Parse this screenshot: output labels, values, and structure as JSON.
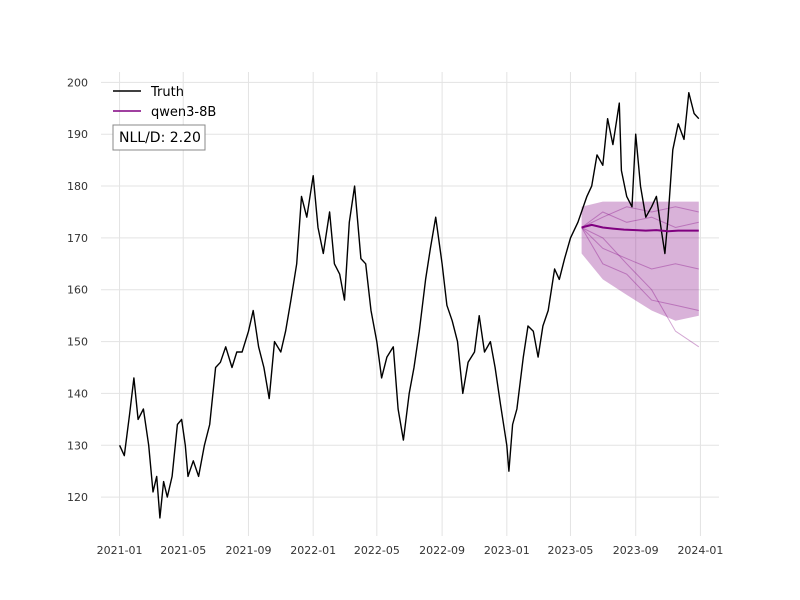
{
  "chart_data": {
    "type": "line",
    "title": "",
    "xlabel": "",
    "ylabel": "",
    "x_ticks": [
      "2021-01",
      "2021-05",
      "2021-09",
      "2022-01",
      "2022-05",
      "2022-09",
      "2023-01",
      "2023-05",
      "2023-09",
      "2024-01"
    ],
    "y_ticks": [
      120,
      130,
      140,
      150,
      160,
      170,
      180,
      190,
      200
    ],
    "xlim": [
      "2020-11-27",
      "2024-02-05"
    ],
    "ylim": [
      112.5,
      202
    ],
    "grid": true,
    "legend_position": "top-left",
    "annotation": "NLL/D: 2.20",
    "series": [
      {
        "name": "Truth",
        "color": "#000000",
        "points": [
          [
            "2021-01-01",
            130
          ],
          [
            "2021-01-10",
            128
          ],
          [
            "2021-01-20",
            136
          ],
          [
            "2021-01-28",
            143
          ],
          [
            "2021-02-05",
            135
          ],
          [
            "2021-02-15",
            137
          ],
          [
            "2021-02-25",
            130
          ],
          [
            "2021-03-05",
            121
          ],
          [
            "2021-03-12",
            124
          ],
          [
            "2021-03-18",
            116
          ],
          [
            "2021-03-25",
            123
          ],
          [
            "2021-04-01",
            120
          ],
          [
            "2021-04-10",
            124
          ],
          [
            "2021-04-20",
            134
          ],
          [
            "2021-04-28",
            135
          ],
          [
            "2021-05-05",
            130
          ],
          [
            "2021-05-10",
            124
          ],
          [
            "2021-05-20",
            127
          ],
          [
            "2021-05-30",
            124
          ],
          [
            "2021-06-10",
            130
          ],
          [
            "2021-06-20",
            134
          ],
          [
            "2021-07-01",
            145
          ],
          [
            "2021-07-10",
            146
          ],
          [
            "2021-07-20",
            149
          ],
          [
            "2021-08-01",
            145
          ],
          [
            "2021-08-10",
            148
          ],
          [
            "2021-08-20",
            148
          ],
          [
            "2021-09-01",
            152
          ],
          [
            "2021-09-10",
            156
          ],
          [
            "2021-09-20",
            149
          ],
          [
            "2021-09-30",
            145
          ],
          [
            "2021-10-10",
            139
          ],
          [
            "2021-10-20",
            150
          ],
          [
            "2021-11-01",
            148
          ],
          [
            "2021-11-10",
            152
          ],
          [
            "2021-11-20",
            158
          ],
          [
            "2021-12-01",
            165
          ],
          [
            "2021-12-10",
            178
          ],
          [
            "2021-12-20",
            174
          ],
          [
            "2022-01-01",
            182
          ],
          [
            "2022-01-10",
            172
          ],
          [
            "2022-01-20",
            167
          ],
          [
            "2022-02-01",
            175
          ],
          [
            "2022-02-10",
            165
          ],
          [
            "2022-02-20",
            163
          ],
          [
            "2022-03-01",
            158
          ],
          [
            "2022-03-10",
            173
          ],
          [
            "2022-03-20",
            180
          ],
          [
            "2022-04-01",
            166
          ],
          [
            "2022-04-10",
            165
          ],
          [
            "2022-04-20",
            156
          ],
          [
            "2022-05-01",
            150
          ],
          [
            "2022-05-10",
            143
          ],
          [
            "2022-05-20",
            147
          ],
          [
            "2022-06-01",
            149
          ],
          [
            "2022-06-10",
            137
          ],
          [
            "2022-06-20",
            131
          ],
          [
            "2022-07-01",
            140
          ],
          [
            "2022-07-10",
            145
          ],
          [
            "2022-07-20",
            152
          ],
          [
            "2022-08-01",
            162
          ],
          [
            "2022-08-10",
            168
          ],
          [
            "2022-08-20",
            174
          ],
          [
            "2022-09-01",
            165
          ],
          [
            "2022-09-10",
            157
          ],
          [
            "2022-09-20",
            154
          ],
          [
            "2022-09-30",
            150
          ],
          [
            "2022-10-10",
            140
          ],
          [
            "2022-10-20",
            146
          ],
          [
            "2022-11-01",
            148
          ],
          [
            "2022-11-10",
            155
          ],
          [
            "2022-11-20",
            148
          ],
          [
            "2022-12-01",
            150
          ],
          [
            "2022-12-10",
            145
          ],
          [
            "2022-12-20",
            138
          ],
          [
            "2023-01-01",
            130
          ],
          [
            "2023-01-05",
            125
          ],
          [
            "2023-01-12",
            134
          ],
          [
            "2023-01-20",
            137
          ],
          [
            "2023-02-01",
            147
          ],
          [
            "2023-02-10",
            153
          ],
          [
            "2023-02-20",
            152
          ],
          [
            "2023-03-01",
            147
          ],
          [
            "2023-03-10",
            153
          ],
          [
            "2023-03-20",
            156
          ],
          [
            "2023-04-01",
            164
          ],
          [
            "2023-04-10",
            162
          ],
          [
            "2023-04-20",
            166
          ],
          [
            "2023-05-01",
            170
          ],
          [
            "2023-05-15",
            173
          ],
          [
            "2023-06-01",
            178
          ],
          [
            "2023-06-10",
            180
          ],
          [
            "2023-06-20",
            186
          ],
          [
            "2023-07-01",
            184
          ],
          [
            "2023-07-10",
            193
          ],
          [
            "2023-07-20",
            188
          ],
          [
            "2023-08-01",
            196
          ],
          [
            "2023-08-05",
            183
          ],
          [
            "2023-08-15",
            178
          ],
          [
            "2023-08-25",
            176
          ],
          [
            "2023-09-01",
            190
          ],
          [
            "2023-09-10",
            180
          ],
          [
            "2023-09-20",
            174
          ],
          [
            "2023-10-01",
            176
          ],
          [
            "2023-10-10",
            178
          ],
          [
            "2023-10-20",
            171
          ],
          [
            "2023-10-26",
            167
          ],
          [
            "2023-11-01",
            174
          ],
          [
            "2023-11-10",
            187
          ],
          [
            "2023-11-20",
            192
          ],
          [
            "2023-12-01",
            189
          ],
          [
            "2023-12-10",
            198
          ],
          [
            "2023-12-20",
            194
          ],
          [
            "2023-12-29",
            193
          ]
        ]
      },
      {
        "name": "qwen3-8B",
        "color": "#800080",
        "points": [
          [
            "2023-05-22",
            172
          ],
          [
            "2023-06-10",
            172.5
          ],
          [
            "2023-07-01",
            172
          ],
          [
            "2023-07-20",
            171.8
          ],
          [
            "2023-08-10",
            171.6
          ],
          [
            "2023-09-01",
            171.5
          ],
          [
            "2023-09-20",
            171.4
          ],
          [
            "2023-10-10",
            171.5
          ],
          [
            "2023-11-01",
            171.3
          ],
          [
            "2023-11-20",
            171.4
          ],
          [
            "2023-12-29",
            171.4
          ]
        ]
      }
    ],
    "forecast_band": {
      "color": "#800080",
      "x": [
        "2023-05-22",
        "2023-07-01",
        "2023-08-15",
        "2023-10-01",
        "2023-11-15",
        "2023-12-29"
      ],
      "upper": [
        176,
        177,
        177,
        177,
        177,
        177
      ],
      "lower": [
        167,
        162,
        159,
        156,
        154,
        155
      ]
    },
    "sample_paths": [
      [
        [
          "2023-05-22",
          172
        ],
        [
          "2023-07-01",
          170
        ],
        [
          "2023-08-15",
          165
        ],
        [
          "2023-10-01",
          160
        ],
        [
          "2023-11-15",
          152
        ],
        [
          "2023-12-29",
          149
        ]
      ],
      [
        [
          "2023-05-22",
          172
        ],
        [
          "2023-07-01",
          174
        ],
        [
          "2023-08-15",
          176
        ],
        [
          "2023-10-01",
          175
        ],
        [
          "2023-11-15",
          176
        ],
        [
          "2023-12-29",
          175
        ]
      ],
      [
        [
          "2023-05-22",
          172
        ],
        [
          "2023-07-01",
          168
        ],
        [
          "2023-08-15",
          166
        ],
        [
          "2023-10-01",
          164
        ],
        [
          "2023-11-15",
          165
        ],
        [
          "2023-12-29",
          164
        ]
      ],
      [
        [
          "2023-05-22",
          172
        ],
        [
          "2023-07-01",
          165
        ],
        [
          "2023-08-15",
          163
        ],
        [
          "2023-10-01",
          158
        ],
        [
          "2023-11-15",
          157
        ],
        [
          "2023-12-29",
          156
        ]
      ],
      [
        [
          "2023-05-22",
          172
        ],
        [
          "2023-07-01",
          175
        ],
        [
          "2023-08-15",
          173
        ],
        [
          "2023-10-01",
          174
        ],
        [
          "2023-11-15",
          172
        ],
        [
          "2023-12-29",
          173
        ]
      ]
    ]
  }
}
